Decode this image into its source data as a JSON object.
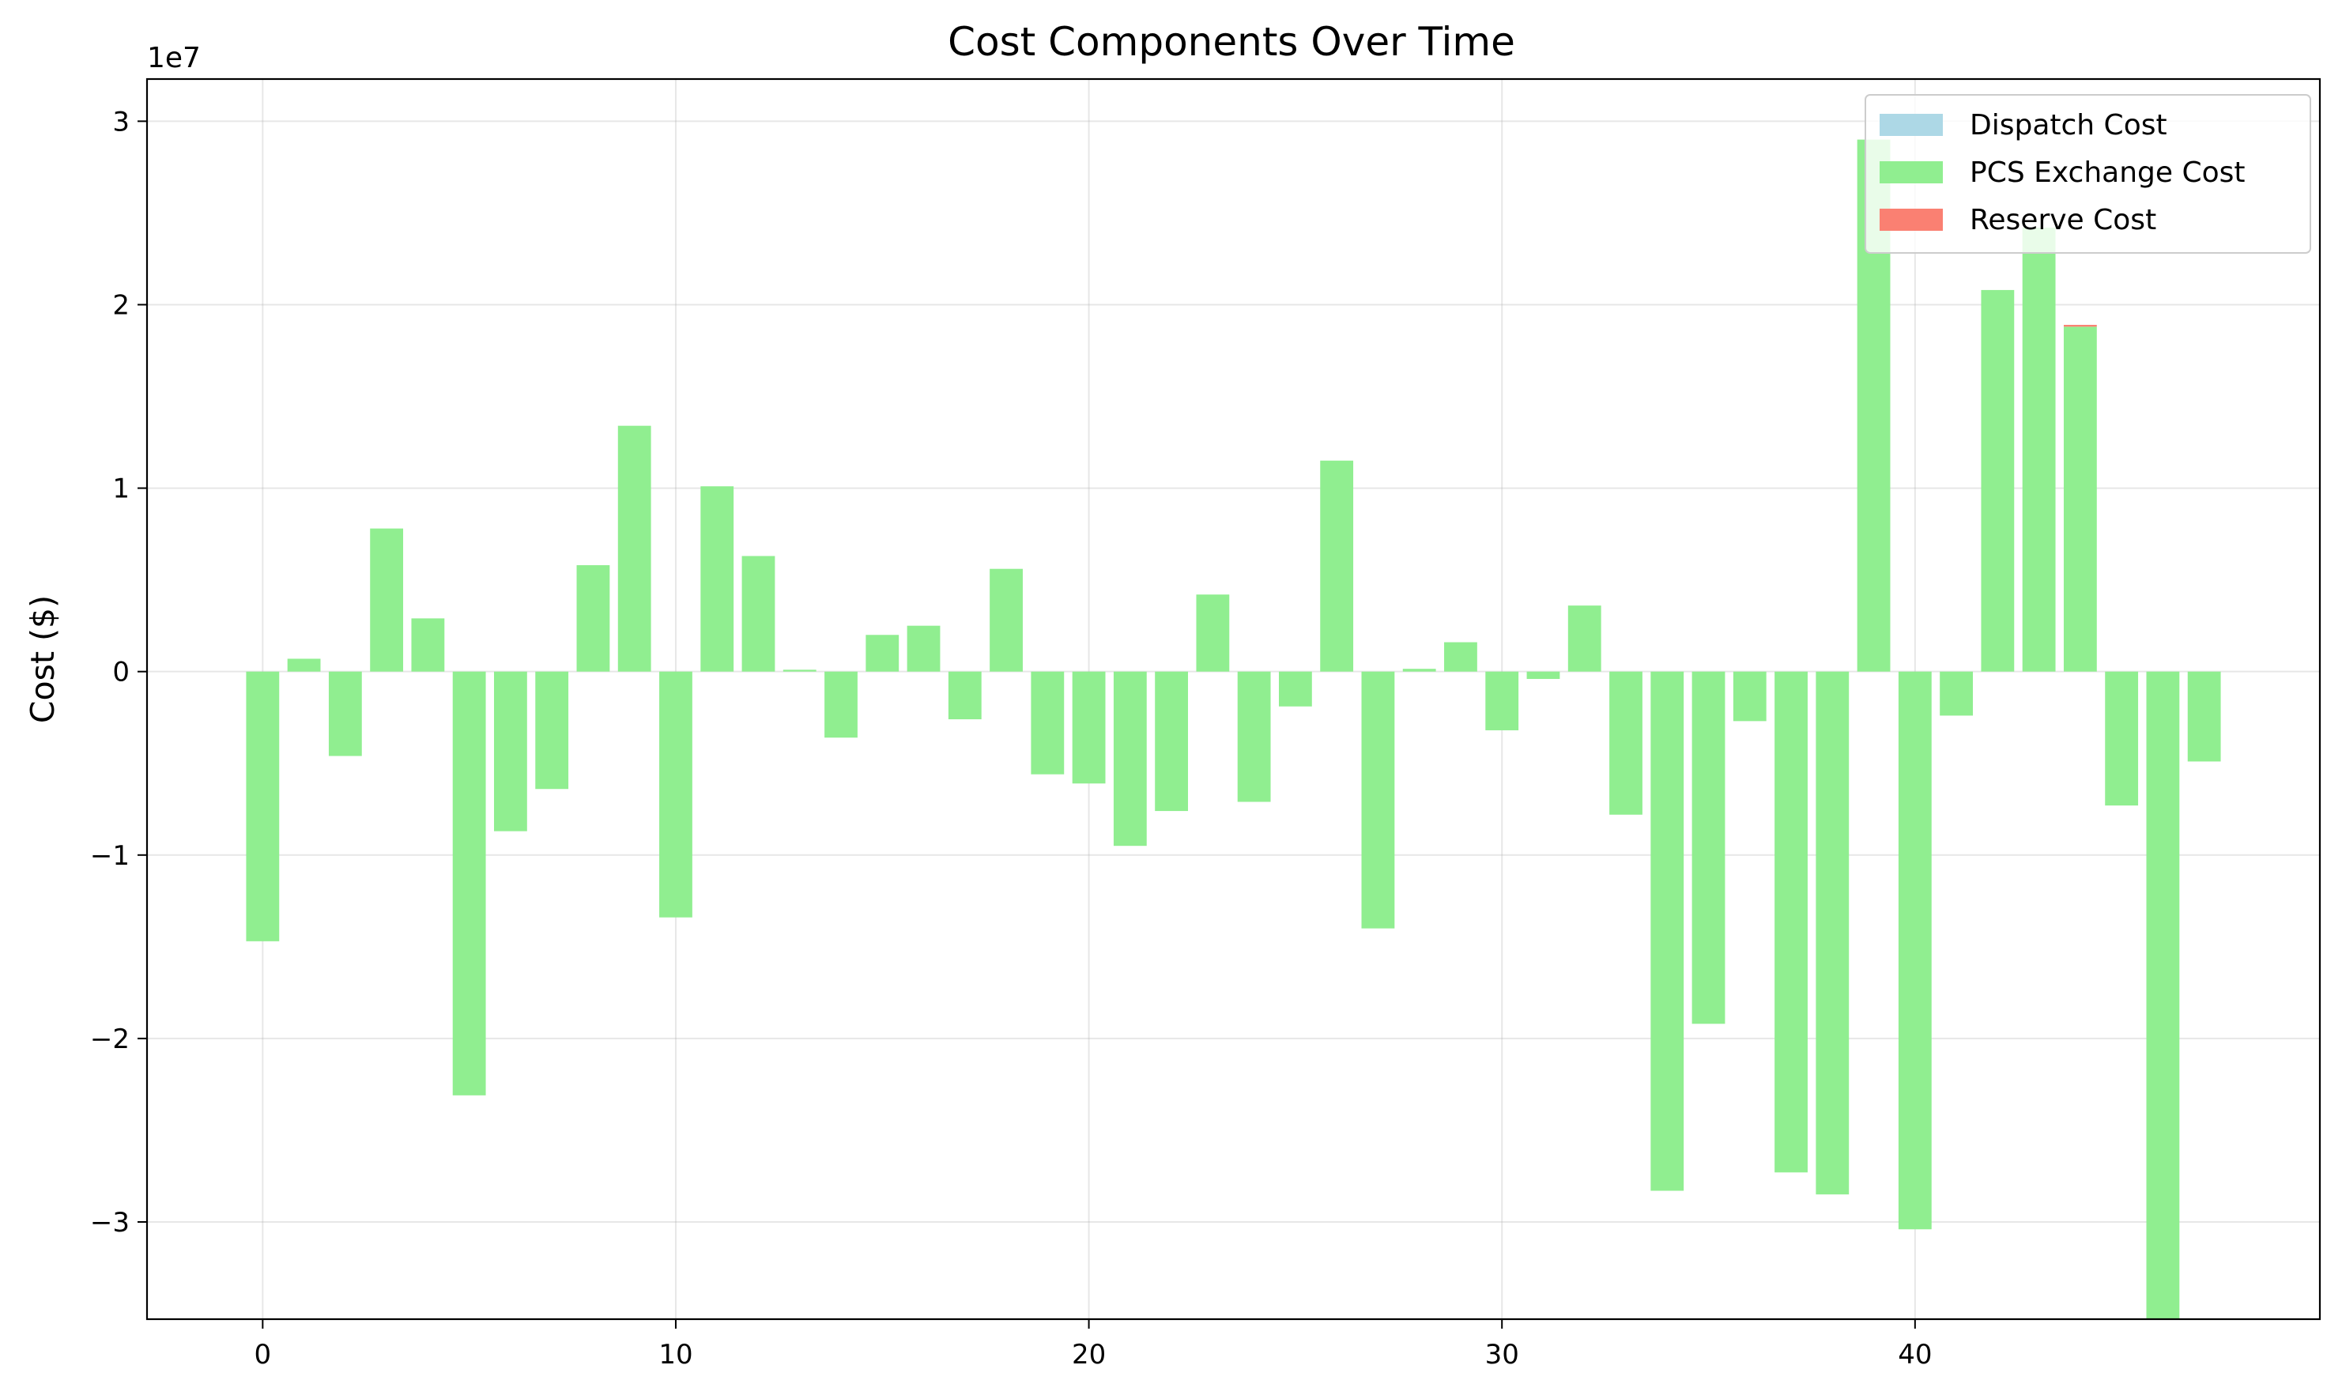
{
  "chart_data": {
    "type": "bar",
    "title": "Cost Components Over Time",
    "xlabel": "",
    "ylabel": "Cost ($)",
    "y_offset_label": "1e7",
    "y_scale": 10000000,
    "xlim": [
      -2.8,
      49.8
    ],
    "ylim": [
      -35300000,
      32300000
    ],
    "x_ticks": [
      0,
      10,
      20,
      30,
      40
    ],
    "y_ticks": [
      -30000000,
      -20000000,
      -10000000,
      0,
      10000000,
      20000000,
      30000000
    ],
    "y_tick_labels": [
      "−3",
      "−2",
      "−1",
      "0",
      "1",
      "2",
      "3"
    ],
    "grid": true,
    "legend_position": "top-right",
    "stacked": true,
    "x": [
      0,
      1,
      2,
      3,
      4,
      5,
      6,
      7,
      8,
      9,
      10,
      11,
      12,
      13,
      14,
      15,
      16,
      17,
      18,
      19,
      20,
      21,
      22,
      23,
      24,
      25,
      26,
      27,
      28,
      29,
      30,
      31,
      32,
      33,
      34,
      35,
      36,
      37,
      38,
      39,
      40,
      41,
      42,
      43,
      44,
      45,
      46,
      47
    ],
    "series": [
      {
        "name": "Dispatch Cost",
        "color": "#add8e6",
        "values": [
          0,
          0,
          0,
          0,
          0,
          0,
          0,
          0,
          0,
          0,
          0,
          0,
          0,
          0,
          0,
          0,
          0,
          0,
          0,
          0,
          0,
          0,
          0,
          0,
          0,
          0,
          0,
          0,
          0,
          0,
          0,
          0,
          0,
          0,
          0,
          0,
          0,
          0,
          0,
          0,
          0,
          0,
          0,
          0,
          0,
          0,
          0,
          0
        ]
      },
      {
        "name": "PCS Exchange Cost",
        "color": "#90ee90",
        "values": [
          -14700000,
          700000,
          -4600000,
          7800000,
          2900000,
          -23100000,
          -8700000,
          -6400000,
          5800000,
          13400000,
          -13400000,
          10100000,
          6300000,
          100000,
          -3600000,
          2000000,
          2500000,
          -2600000,
          5600000,
          -5600000,
          -6100000,
          -9500000,
          -7600000,
          4200000,
          -7100000,
          -1900000,
          11500000,
          -14000000,
          150000,
          1600000,
          -3200000,
          -400000,
          3600000,
          -7800000,
          -28300000,
          -19200000,
          -2700000,
          -27300000,
          -28500000,
          29000000,
          -30400000,
          -2400000,
          20800000,
          24200000,
          18800000,
          -7300000,
          -35300000,
          -4900000
        ]
      },
      {
        "name": "Reserve Cost",
        "color": "#fa8072",
        "values": [
          0,
          0,
          0,
          0,
          0,
          0,
          0,
          0,
          0,
          0,
          0,
          0,
          0,
          0,
          0,
          0,
          0,
          0,
          0,
          0,
          0,
          0,
          0,
          0,
          0,
          0,
          0,
          0,
          0,
          0,
          0,
          0,
          0,
          0,
          0,
          0,
          0,
          0,
          0,
          0,
          0,
          0,
          0,
          0,
          100000,
          0,
          0,
          0
        ]
      }
    ]
  }
}
